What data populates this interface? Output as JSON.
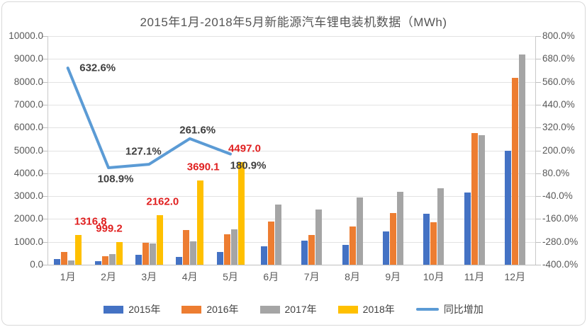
{
  "title": "2015年1月-2018年5月新能源汽车锂电装机数据（MWh)",
  "chart_data": {
    "type": "bar",
    "subtype": "grouped-bars-with-line-overlay",
    "title": "2015年1月-2018年5月新能源汽车锂电装机数据（MWh)",
    "categories": [
      "1月",
      "2月",
      "3月",
      "4月",
      "5月",
      "6月",
      "7月",
      "8月",
      "9月",
      "10月",
      "11月",
      "12月"
    ],
    "series": [
      {
        "name": "2015年",
        "color": "#4472c4",
        "values": [
          240,
          170,
          430,
          330,
          570,
          820,
          1050,
          860,
          1460,
          2230,
          3160,
          4990
        ]
      },
      {
        "name": "2016年",
        "color": "#ed7d31",
        "values": [
          570,
          370,
          950,
          1520,
          1330,
          1900,
          1290,
          1670,
          2270,
          1860,
          5770,
          8160
        ]
      },
      {
        "name": "2017年",
        "color": "#a5a5a5",
        "values": [
          180,
          480,
          940,
          1030,
          1550,
          2630,
          2420,
          2950,
          3180,
          3340,
          5670,
          9190
        ]
      },
      {
        "name": "2018年",
        "color": "#ffc000",
        "values": [
          1316.8,
          999.2,
          2162.0,
          3690.1,
          4497.0,
          null,
          null,
          null,
          null,
          null,
          null,
          null
        ]
      }
    ],
    "bar_value_labels": [
      "1316.8",
      "999.2",
      "2162.0",
      "3690.1",
      "4497.0"
    ],
    "line_series": {
      "name": "同比增加",
      "color": "#5b9bd5",
      "values_pct": [
        632.6,
        108.9,
        127.1,
        261.6,
        180.9
      ],
      "labels": [
        "632.6%",
        "108.9%",
        "127.1%",
        "261.6%",
        "180.9%"
      ]
    },
    "left_axis": {
      "min": 0,
      "max": 10000,
      "step": 1000,
      "tick_labels": [
        "10000.0",
        "9000.0",
        "8000.0",
        "7000.0",
        "6000.0",
        "5000.0",
        "4000.0",
        "3000.0",
        "2000.0",
        "1000.0",
        "0.0"
      ]
    },
    "right_axis": {
      "min": -400,
      "max": 800,
      "step": 120,
      "tick_labels": [
        "800.0%",
        "680.0%",
        "560.0%",
        "440.0%",
        "320.0%",
        "200.0%",
        "80.0%",
        "-40.0%",
        "-160.0%",
        "-280.0%",
        "-400.0%"
      ]
    },
    "grid": "horizontal",
    "legend_position": "bottom"
  }
}
